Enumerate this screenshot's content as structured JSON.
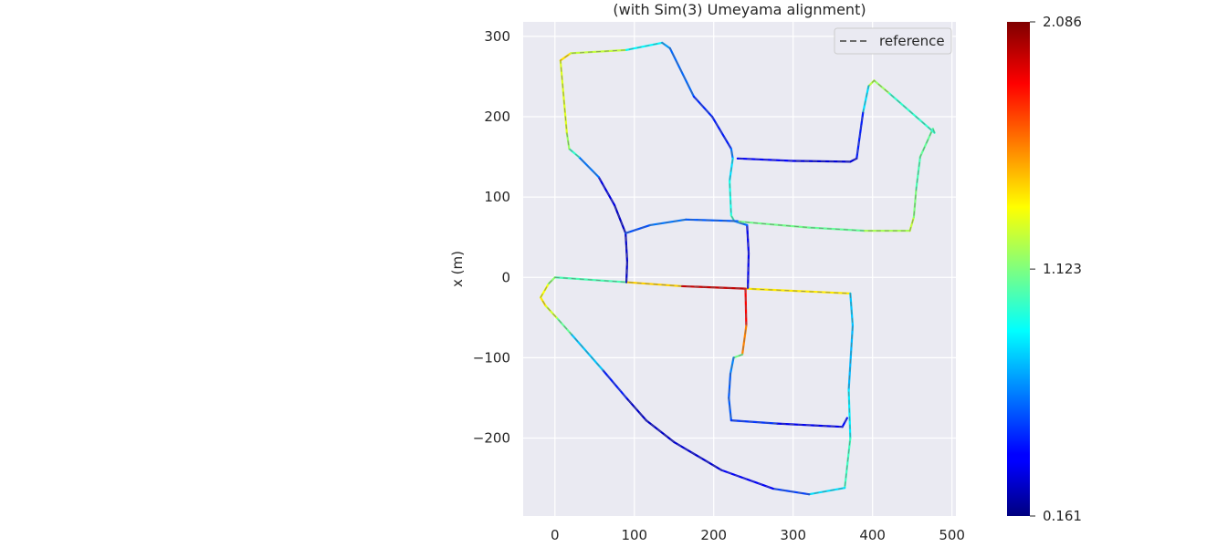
{
  "chart_data": {
    "type": "line",
    "title": "(with Sim(3) Umeyama alignment)",
    "xlabel": "",
    "ylabel": "x (m)",
    "xlim": [
      -40,
      505
    ],
    "ylim": [
      -297,
      318
    ],
    "xticks": [
      0,
      100,
      200,
      300,
      400,
      500
    ],
    "yticks": [
      -200,
      -100,
      0,
      100,
      200,
      300
    ],
    "xtick_labels": [
      "0",
      "100",
      "200",
      "300",
      "400",
      "500"
    ],
    "ytick_labels": [
      "−200",
      "−100",
      "0",
      "100",
      "200",
      "300"
    ],
    "grid": true,
    "legend": {
      "position": "top-right",
      "entries": [
        {
          "label": "reference",
          "style": "dashed",
          "color": "#6b6b6b"
        }
      ]
    },
    "colorbar": {
      "colormap": "jet",
      "min": 0.161,
      "max": 2.086,
      "tick_values": [
        2.086,
        1.123,
        0.161
      ],
      "tick_labels": [
        "2.086",
        "1.123",
        "0.161"
      ]
    },
    "series": [
      {
        "x": [
          0,
          90,
          160,
          240,
          372,
          375,
          370,
          372,
          365,
          320,
          275,
          210,
          150,
          115,
          90,
          60,
          20,
          2,
          -12,
          -18,
          -8,
          0
        ],
        "y": [
          0,
          -6,
          -11,
          -14,
          -20,
          -60,
          -140,
          -200,
          -262,
          -270,
          -263,
          -240,
          -205,
          -178,
          -150,
          -115,
          -70,
          -50,
          -35,
          -25,
          -8,
          0
        ],
        "error": [
          1.05,
          1.0,
          1.9,
          2.0,
          0.8,
          0.75,
          0.75,
          0.95,
          1.05,
          0.6,
          0.45,
          0.35,
          0.3,
          0.3,
          0.3,
          0.6,
          0.95,
          1.2,
          1.35,
          1.45,
          1.25,
          1.05
        ]
      },
      {
        "x": [
          240,
          241,
          236,
          225,
          221,
          219,
          222,
          280,
          362,
          368
        ],
        "y": [
          -14,
          -60,
          -96,
          -100,
          -120,
          -150,
          -178,
          -182,
          -186,
          -175
        ],
        "error": [
          2.0,
          1.7,
          1.5,
          0.7,
          0.6,
          0.55,
          0.6,
          0.4,
          0.35,
          0.5
        ]
      },
      {
        "x": [
          243,
          244,
          242,
          226
        ],
        "y": [
          -13,
          30,
          65,
          70
        ],
        "error": [
          0.4,
          0.35,
          0.4,
          0.8
        ]
      },
      {
        "x": [
          90,
          91,
          89,
          75,
          55,
          30,
          18,
          15,
          7,
          20,
          90,
          135,
          145,
          175,
          198,
          222,
          224,
          220,
          222,
          226,
          260,
          320,
          390,
          447,
          452,
          455,
          460,
          476,
          478,
          420,
          402,
          395,
          388,
          380,
          372,
          300,
          230
        ],
        "y": [
          -6,
          20,
          55,
          90,
          125,
          150,
          160,
          180,
          270,
          279,
          283,
          292,
          285,
          225,
          200,
          160,
          148,
          120,
          77,
          70,
          67,
          62,
          58,
          58,
          75,
          110,
          150,
          185,
          180,
          230,
          245,
          238,
          205,
          148,
          144,
          145,
          148
        ],
        "error": [
          0.3,
          0.3,
          0.3,
          0.3,
          0.4,
          0.85,
          1.1,
          1.25,
          1.35,
          1.5,
          1.0,
          0.75,
          0.65,
          0.55,
          0.4,
          0.5,
          0.75,
          0.9,
          0.95,
          1.05,
          1.15,
          1.05,
          1.1,
          1.3,
          1.2,
          1.05,
          1.0,
          1.15,
          0.95,
          1.0,
          1.35,
          1.1,
          0.55,
          0.35,
          0.3,
          0.35,
          0.45
        ]
      },
      {
        "x": [
          89,
          120,
          165,
          230
        ],
        "y": [
          55,
          65,
          72,
          70
        ],
        "error": [
          0.45,
          0.65,
          0.6,
          0.55
        ]
      }
    ]
  }
}
